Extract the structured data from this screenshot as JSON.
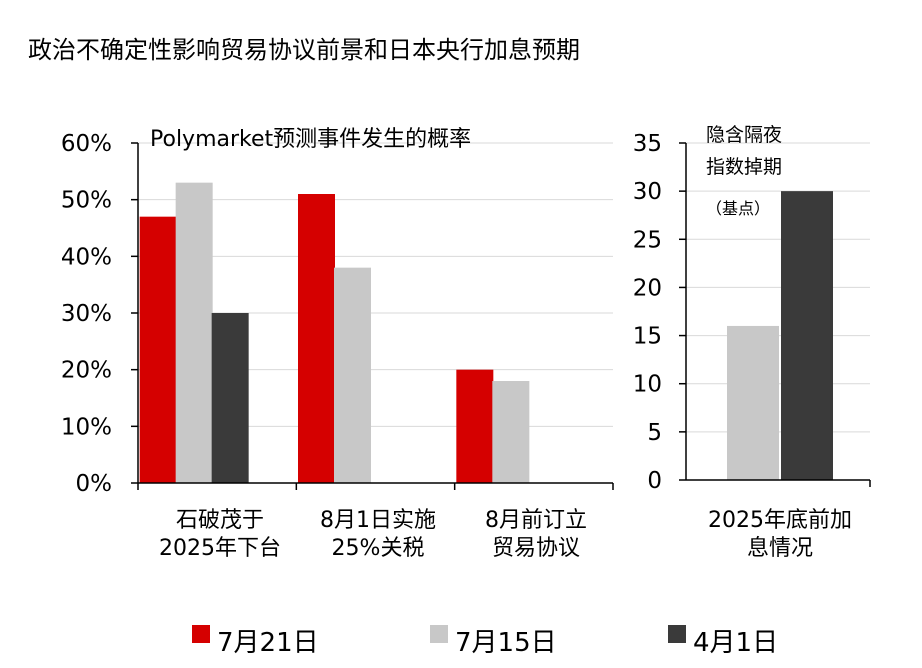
{
  "figure_title": "政治不确定性影响贸易协议前景和日本央行加息预期",
  "colors": {
    "red": "#d50000",
    "gray": "#c8c8c8",
    "dark": "#3a3a3a",
    "grid": "#d9d9d9",
    "axis": "#000000"
  },
  "chart_data": [
    {
      "type": "bar",
      "title": "Polymarket预测事件发生的概率",
      "categories": [
        "石破茂于2025年下台",
        "8月1日实施25%关税",
        "8月前订立贸易协议"
      ],
      "category_lines": [
        [
          "石破茂于",
          "2025年下台"
        ],
        [
          "8月1日实施",
          "25%关税"
        ],
        [
          "8月前订立",
          "贸易协议"
        ]
      ],
      "series": [
        {
          "name": "7月21日",
          "color": "#d50000",
          "values": [
            47,
            51,
            20
          ]
        },
        {
          "name": "7月15日",
          "color": "#c8c8c8",
          "values": [
            53,
            38,
            18
          ]
        },
        {
          "name": "4月1日",
          "color": "#3a3a3a",
          "values": [
            30,
            null,
            null
          ]
        }
      ],
      "ylim": [
        0,
        60
      ],
      "yticks": [
        "0%",
        "10%",
        "20%",
        "30%",
        "40%",
        "50%",
        "60%"
      ],
      "ylabel": "",
      "xlabel": "",
      "grid": true,
      "legend": "bottom"
    },
    {
      "type": "bar",
      "note_lines": [
        "隐含隔夜",
        "指数掉期",
        "（基点）"
      ],
      "categories": [
        "2025年底前加息情况"
      ],
      "category_lines": [
        [
          "2025年底前加",
          "息情况"
        ]
      ],
      "series": [
        {
          "name": "7月15日",
          "color": "#c8c8c8",
          "values": [
            16
          ]
        },
        {
          "name": "4月1日",
          "color": "#3a3a3a",
          "values": [
            30
          ]
        }
      ],
      "ylim": [
        0,
        35
      ],
      "yticks": [
        "0",
        "5",
        "10",
        "15",
        "20",
        "25",
        "30",
        "35"
      ],
      "ylabel": "",
      "xlabel": "",
      "grid": true
    }
  ]
}
